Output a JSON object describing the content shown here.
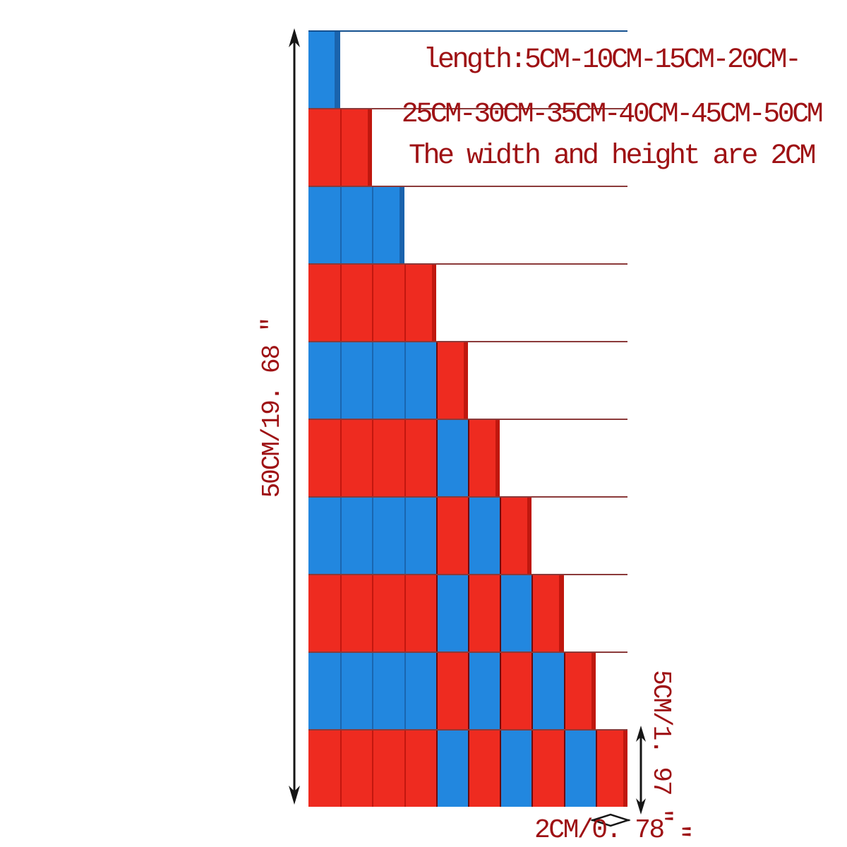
{
  "annotations": {
    "spec_line_1": "length:5CM-10CM-15CM-20CM-",
    "spec_line_2": "25CM-30CM-35CM-40CM-45CM-50CM",
    "spec_line_3": "The width and height are 2CM",
    "total_height_label": "50CM/19. 68 \"",
    "step_height_label": "5CM/1. 97 \"",
    "rod_width_label": "2CM/0. 78",
    "rod_width_quote": "\""
  },
  "colors": {
    "background": "#ffffff",
    "red": "#ee2b20",
    "blue": "#2287df",
    "red_dark": "#c0170e",
    "blue_dark": "#1a63ad",
    "red_seam": "#c3170f",
    "blue_seam": "#1a66b0",
    "maroon_seam": "#6e0909",
    "text": "#9e1114",
    "arrow": "#161616"
  },
  "rods": [
    {
      "length_cm": 5,
      "segments": [
        "blue"
      ]
    },
    {
      "length_cm": 10,
      "segments": [
        "red",
        "red"
      ]
    },
    {
      "length_cm": 15,
      "segments": [
        "blue",
        "blue",
        "blue"
      ]
    },
    {
      "length_cm": 20,
      "segments": [
        "red",
        "red",
        "red",
        "red"
      ]
    },
    {
      "length_cm": 25,
      "segments": [
        "blue",
        "blue",
        "blue",
        "blue",
        "red"
      ]
    },
    {
      "length_cm": 30,
      "segments": [
        "red",
        "red",
        "red",
        "red",
        "blue",
        "red"
      ]
    },
    {
      "length_cm": 35,
      "segments": [
        "blue",
        "blue",
        "blue",
        "blue",
        "red",
        "blue",
        "red"
      ]
    },
    {
      "length_cm": 40,
      "segments": [
        "red",
        "red",
        "red",
        "red",
        "blue",
        "red",
        "blue",
        "red"
      ]
    },
    {
      "length_cm": 45,
      "segments": [
        "blue",
        "blue",
        "blue",
        "blue",
        "red",
        "blue",
        "red",
        "blue",
        "red"
      ]
    },
    {
      "length_cm": 50,
      "segments": [
        "red",
        "red",
        "red",
        "red",
        "blue",
        "red",
        "blue",
        "red",
        "blue",
        "red"
      ]
    }
  ],
  "dimensions": {
    "total_height_cm": 50,
    "total_height_in": 19.68,
    "step_cm": 5,
    "step_in": 1.97,
    "rod_cross_section_cm": 2,
    "rod_cross_section_in": 0.78
  }
}
